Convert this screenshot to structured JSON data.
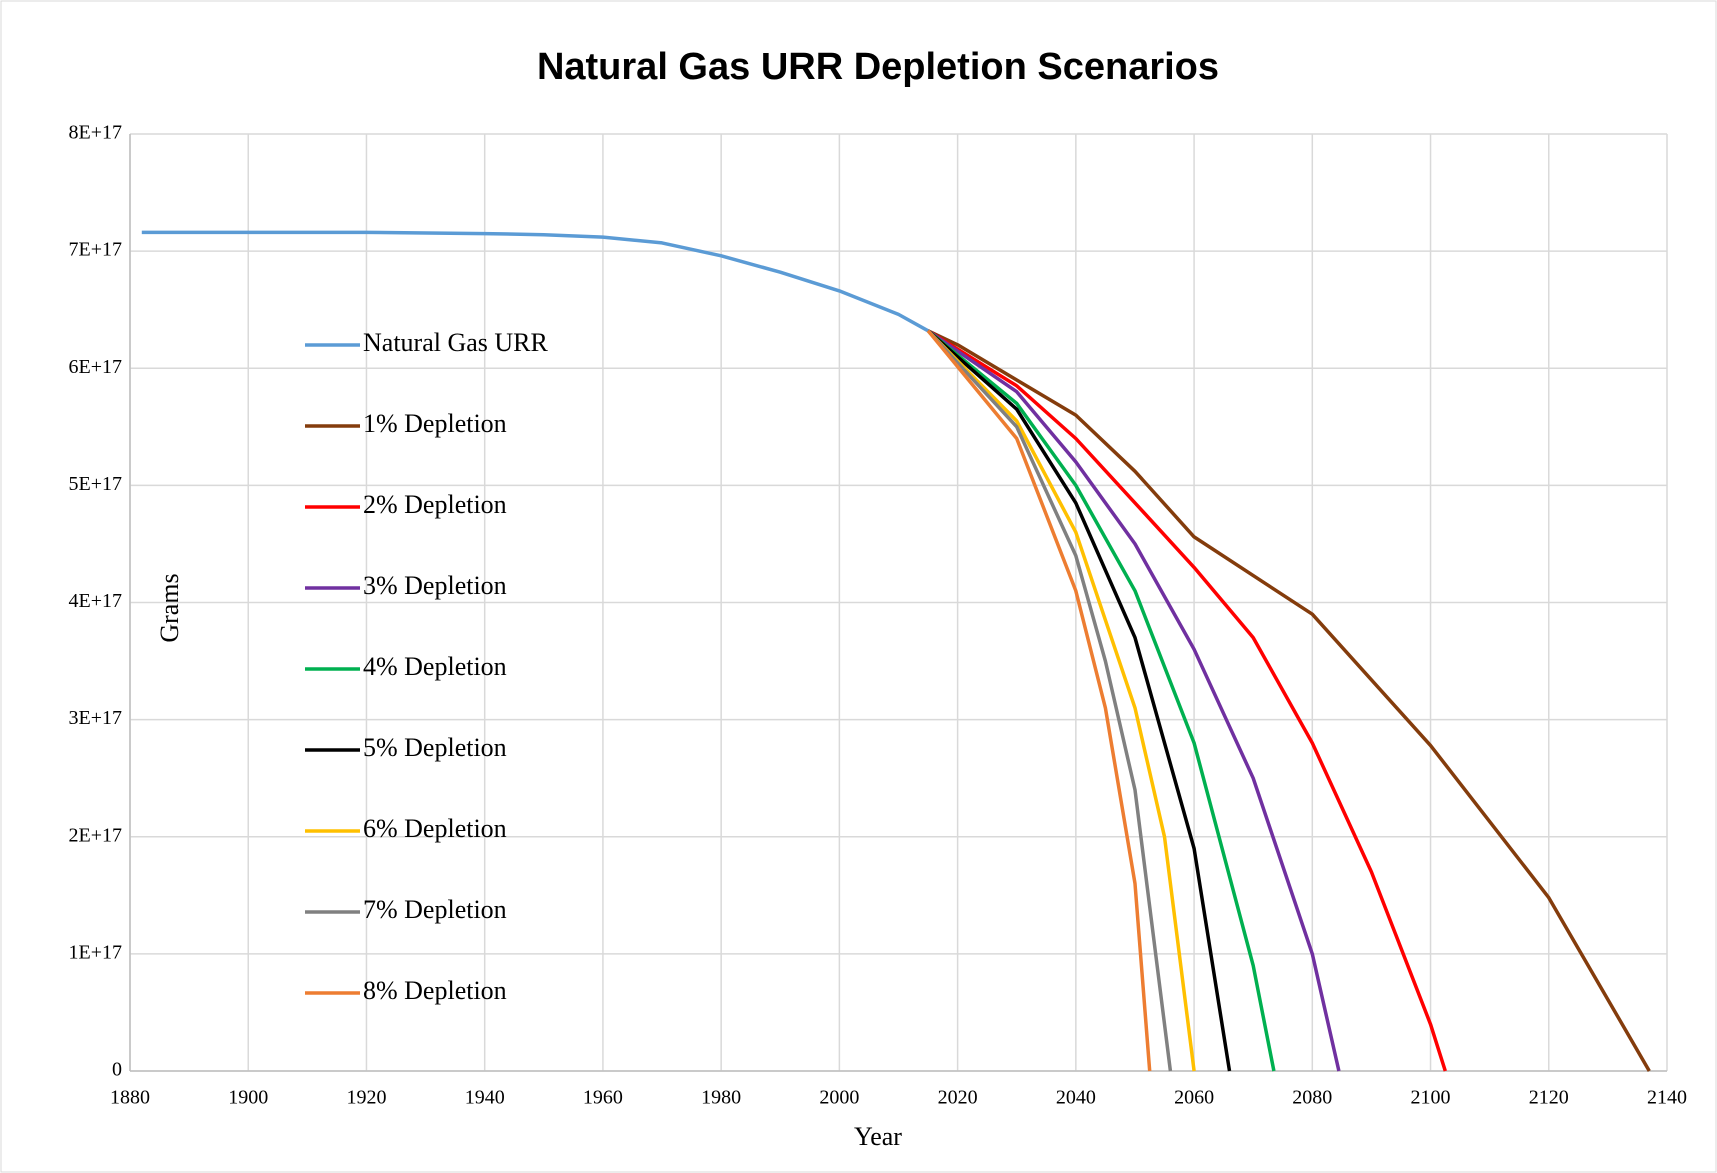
{
  "chart_data": {
    "type": "line",
    "title": "Natural Gas URR Depletion Scenarios",
    "x_label": "Year",
    "y_label": "Grams",
    "xlim": [
      1880,
      2140
    ],
    "xticks": [
      1880,
      1900,
      1920,
      1940,
      1960,
      1980,
      2000,
      2020,
      2040,
      2060,
      2080,
      2100,
      2120,
      2140
    ],
    "ylim": [
      0,
      8e+17
    ],
    "yticks": [
      0,
      {
        "value": 1e+17,
        "label": "1E+17"
      },
      {
        "value": 2e+17,
        "label": "2E+17"
      },
      {
        "value": 3e+17,
        "label": "3E+17"
      },
      {
        "value": 4e+17,
        "label": "4E+17"
      },
      {
        "value": 5e+17,
        "label": "5E+17"
      },
      {
        "value": 6e+17,
        "label": "6E+17"
      },
      {
        "value": 7e+17,
        "label": "7E+17"
      },
      {
        "value": 8e+17,
        "label": "8E+17"
      }
    ],
    "grid": true,
    "legend": "left",
    "series": [
      {
        "name": "Natural Gas URR",
        "color": "#5b9bd5",
        "x": [
          1882,
          1920,
          1940,
          1950,
          1960,
          1970,
          1980,
          1990,
          2000,
          2010,
          2015
        ],
        "values": [
          7.16e+17,
          7.16e+17,
          7.15e+17,
          7.14e+17,
          7.12e+17,
          7.07e+17,
          6.96e+17,
          6.82e+17,
          6.66e+17,
          6.46e+17,
          6.32e+17
        ]
      },
      {
        "name": "1% Depletion",
        "color": "#843c0c",
        "x": [
          2015,
          2020,
          2030,
          2040,
          2050,
          2060,
          2080,
          2100,
          2120,
          2137
        ],
        "values": [
          6.32e+17,
          6.2e+17,
          5.9e+17,
          5.6e+17,
          5.12e+17,
          4.56e+17,
          3.9e+17,
          2.78e+17,
          1.48e+17,
          0
        ]
      },
      {
        "name": "2% Depletion",
        "color": "#ff0000",
        "x": [
          2015,
          2030,
          2040,
          2050,
          2060,
          2070,
          2080,
          2090,
          2100,
          2102.5
        ],
        "values": [
          6.32e+17,
          5.85e+17,
          5.4e+17,
          4.85e+17,
          4.3e+17,
          3.7e+17,
          2.8e+17,
          1.7e+17,
          4e+16,
          0
        ]
      },
      {
        "name": "3% Depletion",
        "color": "#7030a0",
        "x": [
          2015,
          2030,
          2040,
          2050,
          2060,
          2070,
          2080,
          2084.5
        ],
        "values": [
          6.32e+17,
          5.8e+17,
          5.2e+17,
          4.5e+17,
          3.6e+17,
          2.5e+17,
          1e+17,
          0
        ]
      },
      {
        "name": "4% Depletion",
        "color": "#00b050",
        "x": [
          2015,
          2030,
          2040,
          2050,
          2060,
          2070,
          2073.5
        ],
        "values": [
          6.32e+17,
          5.7e+17,
          5e+17,
          4.1e+17,
          2.8e+17,
          9e+16,
          0
        ]
      },
      {
        "name": "5% Depletion",
        "color": "#000000",
        "x": [
          2015,
          2030,
          2040,
          2050,
          2060,
          2066
        ],
        "values": [
          6.32e+17,
          5.65e+17,
          4.85e+17,
          3.7e+17,
          1.9e+17,
          0
        ]
      },
      {
        "name": "6% Depletion",
        "color": "#ffc000",
        "x": [
          2015,
          2030,
          2040,
          2050,
          2055,
          2060
        ],
        "values": [
          6.32e+17,
          5.55e+17,
          4.6e+17,
          3.1e+17,
          2e+17,
          0
        ]
      },
      {
        "name": "7% Depletion",
        "color": "#808080",
        "x": [
          2015,
          2030,
          2040,
          2045,
          2050,
          2056
        ],
        "values": [
          6.32e+17,
          5.5e+17,
          4.4e+17,
          3.5e+17,
          2.4e+17,
          0
        ]
      },
      {
        "name": "8% Depletion",
        "color": "#ed7d31",
        "x": [
          2015,
          2030,
          2040,
          2045,
          2050,
          2052.5
        ],
        "values": [
          6.32e+17,
          5.4e+17,
          4.1e+17,
          3.1e+17,
          1.6e+17,
          0
        ]
      }
    ]
  }
}
